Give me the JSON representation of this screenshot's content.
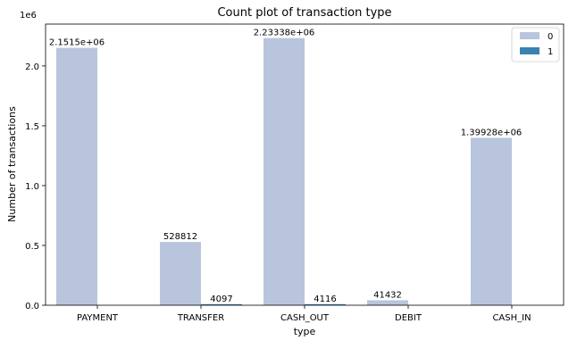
{
  "chart_data": {
    "type": "bar",
    "title": "Count plot of transaction type",
    "xlabel": "type",
    "ylabel": "Number of transactions",
    "offset_label": "1e6",
    "categories": [
      "PAYMENT",
      "TRANSFER",
      "CASH_OUT",
      "DEBIT",
      "CASH_IN"
    ],
    "series": [
      {
        "name": "0",
        "color": "#b8c5dc",
        "values": [
          2151495,
          528812,
          2233384,
          41432,
          1399284
        ],
        "labels": [
          "2.1515e+06",
          "528812",
          "2.23338e+06",
          "41432",
          "1.39928e+06"
        ]
      },
      {
        "name": "1",
        "color": "#3a82b1",
        "values": [
          0,
          4097,
          4116,
          0,
          0
        ],
        "labels": [
          "",
          "4097",
          "4116",
          "",
          ""
        ]
      }
    ],
    "ylim": [
      0,
      2350000
    ],
    "yticks": [
      0,
      500000,
      1000000,
      1500000,
      2000000
    ],
    "ytick_labels": [
      "0.0",
      "0.5",
      "1.0",
      "1.5",
      "2.0"
    ],
    "grid": false,
    "legend_position": "top-right"
  }
}
